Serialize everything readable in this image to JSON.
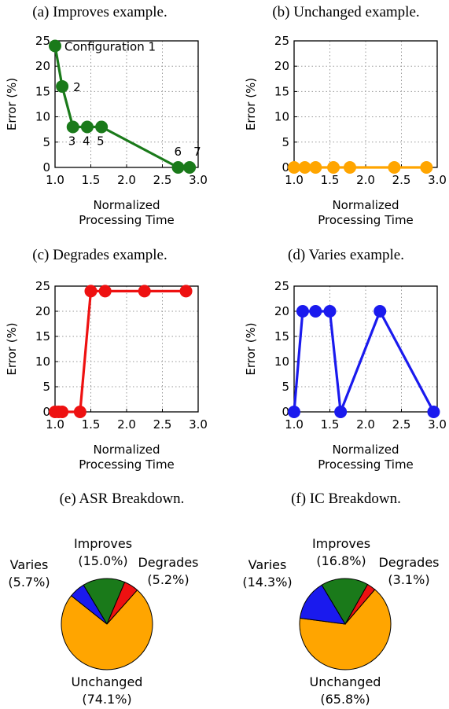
{
  "chart_data": [
    {
      "type": "line",
      "title": "(a) Improves example.",
      "xlabel": "Normalized\nProcessing Time",
      "ylabel": "Error (%)",
      "xlim": [
        1.0,
        3.0
      ],
      "ylim": [
        0,
        25
      ],
      "xticks": [
        "1.0",
        "1.5",
        "2.0",
        "2.5",
        "3.0"
      ],
      "yticks": [
        "0",
        "5",
        "10",
        "15",
        "20",
        "25"
      ],
      "grid": true,
      "color": "#1a7a1a",
      "x": [
        1.0,
        1.1,
        1.25,
        1.45,
        1.65,
        2.72,
        2.88
      ],
      "y": [
        24,
        16,
        8,
        8,
        8,
        0,
        0
      ],
      "point_labels": [
        "Configuration 1",
        "2",
        "3",
        "4",
        "5",
        "6",
        "7"
      ]
    },
    {
      "type": "line",
      "title": "(b) Unchanged example.",
      "xlabel": "Normalized\nProcessing Time",
      "ylabel": "Error (%)",
      "xlim": [
        1.0,
        3.0
      ],
      "ylim": [
        0,
        25
      ],
      "xticks": [
        "1.0",
        "1.5",
        "2.0",
        "2.5",
        "3.0"
      ],
      "yticks": [
        "0",
        "5",
        "10",
        "15",
        "20",
        "25"
      ],
      "grid": true,
      "color": "#ffa500",
      "x": [
        1.0,
        1.15,
        1.3,
        1.55,
        1.78,
        2.4,
        2.85
      ],
      "y": [
        0,
        0,
        0,
        0,
        0,
        0,
        0
      ]
    },
    {
      "type": "line",
      "title": "(c) Degrades example.",
      "xlabel": "Normalized\nProcessing Time",
      "ylabel": "Error (%)",
      "xlim": [
        1.0,
        3.0
      ],
      "ylim": [
        0,
        25
      ],
      "xticks": [
        "1.0",
        "1.5",
        "2.0",
        "2.5",
        "3.0"
      ],
      "yticks": [
        "0",
        "5",
        "10",
        "15",
        "20",
        "25"
      ],
      "grid": true,
      "color": "#ee1111",
      "x": [
        1.0,
        1.05,
        1.1,
        1.35,
        1.5,
        1.7,
        2.25,
        2.83
      ],
      "y": [
        0,
        0,
        0,
        0,
        24,
        24,
        24,
        24
      ]
    },
    {
      "type": "line",
      "title": "(d) Varies example.",
      "xlabel": "Normalized\nProcessing Time",
      "ylabel": "Error (%)",
      "xlim": [
        1.0,
        3.0
      ],
      "ylim": [
        0,
        25
      ],
      "xticks": [
        "1.0",
        "1.5",
        "2.0",
        "2.5",
        "3.0"
      ],
      "yticks": [
        "0",
        "5",
        "10",
        "15",
        "20",
        "25"
      ],
      "grid": true,
      "color": "#1a1aee",
      "x": [
        1.0,
        1.12,
        1.3,
        1.5,
        1.65,
        2.2,
        2.95
      ],
      "y": [
        0,
        20,
        20,
        20,
        0,
        20,
        0
      ]
    },
    {
      "type": "pie",
      "title": "(e) ASR Breakdown.",
      "slices": [
        {
          "name": "Improves",
          "label": "(15.0%)",
          "value": 15.0,
          "color": "#1a7a1a"
        },
        {
          "name": "Degrades",
          "label": "(5.2%)",
          "value": 5.2,
          "color": "#ee1111"
        },
        {
          "name": "Unchanged",
          "label": "(74.1%)",
          "value": 74.1,
          "color": "#ffa500"
        },
        {
          "name": "Varies",
          "label": "(5.7%)",
          "value": 5.7,
          "color": "#1a1aee"
        }
      ]
    },
    {
      "type": "pie",
      "title": "(f) IC Breakdown.",
      "slices": [
        {
          "name": "Improves",
          "label": "(16.8%)",
          "value": 16.8,
          "color": "#1a7a1a"
        },
        {
          "name": "Degrades",
          "label": "(3.1%)",
          "value": 3.1,
          "color": "#ee1111"
        },
        {
          "name": "Unchanged",
          "label": "(65.8%)",
          "value": 65.8,
          "color": "#ffa500"
        },
        {
          "name": "Varies",
          "label": "(14.3%)",
          "value": 14.3,
          "color": "#1a1aee"
        }
      ]
    }
  ]
}
